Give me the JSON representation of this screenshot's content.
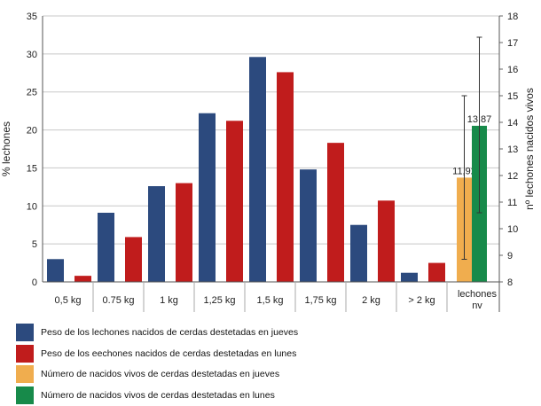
{
  "chart_data": {
    "type": "bar",
    "y_left_label": "% lechones",
    "y_right_label": "nº lechones nacidos vivos",
    "y_left_range": [
      0,
      35
    ],
    "y_left_ticks": [
      "0",
      "5",
      "10",
      "15",
      "20",
      "25",
      "30",
      "35"
    ],
    "y_right_range": [
      8,
      18
    ],
    "y_right_ticks": [
      "8",
      "9",
      "10",
      "11",
      "12",
      "13",
      "14",
      "15",
      "16",
      "17",
      "18"
    ],
    "grid": true,
    "legend_placement": "bottom-left",
    "categories": [
      "0,5 kg",
      "0.75 kg",
      "1 kg",
      "1,25 kg",
      "1,5 kg",
      "1,75 kg",
      "2 kg",
      "> 2 kg"
    ],
    "weight_series": [
      {
        "name": "Peso de los lechones nacidos de cerdas destetadas en jueves",
        "color": "#2c4a7e",
        "values": [
          3.0,
          9.1,
          12.6,
          22.2,
          29.6,
          14.8,
          7.5,
          1.2
        ]
      },
      {
        "name": "Peso de los eechones nacidos de cerdas destetadas en lunes",
        "color": "#c01c1c",
        "values": [
          0.8,
          5.9,
          13.0,
          21.2,
          27.6,
          18.3,
          10.7,
          2.5
        ]
      }
    ],
    "born_alive": {
      "category_line1": "lechones",
      "category_line2": "nv",
      "series": [
        {
          "name": "Número de nacidos vivos de cerdas destetadas en jueves",
          "color": "#f0ad4e",
          "value": 11.92,
          "label": "11,92",
          "error_low": 8.85,
          "error_high": 15.0
        },
        {
          "name": "Número de nacidos vivos de cerdas destetadas en lunes",
          "color": "#178a4a",
          "value": 13.87,
          "label": "13,87",
          "error_low": 10.6,
          "error_high": 17.2
        }
      ]
    }
  }
}
